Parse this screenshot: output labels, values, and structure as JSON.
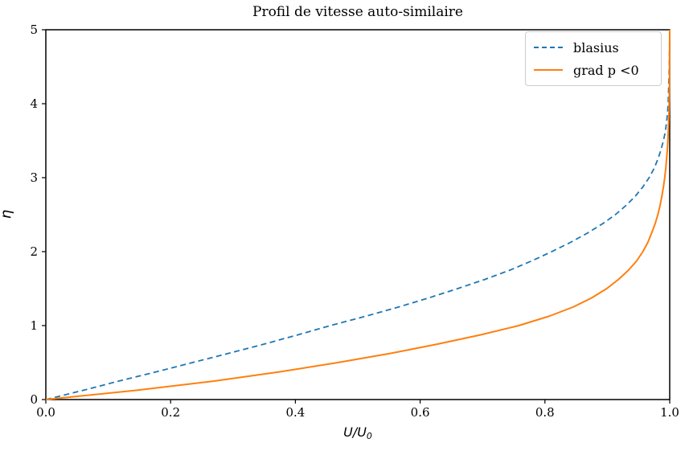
{
  "figure": {
    "background": "#ffffff",
    "axis_color": "#000000"
  },
  "chart_data": {
    "type": "line",
    "title": "Profil de vitesse auto-similaire",
    "xlabel": "U/U_0",
    "xlabel_display": {
      "main": "U/U",
      "sub": "0"
    },
    "ylabel": "η",
    "xlim": [
      0.0,
      1.0
    ],
    "ylim": [
      0,
      5
    ],
    "xticks": [
      "0.0",
      "0.2",
      "0.4",
      "0.6",
      "0.8",
      "1.0"
    ],
    "xtick_values": [
      0.0,
      0.2,
      0.4,
      0.6,
      0.8,
      1.0
    ],
    "yticks": [
      "0",
      "1",
      "2",
      "3",
      "4",
      "5"
    ],
    "ytick_values": [
      0,
      1,
      2,
      3,
      4,
      5
    ],
    "grid": false,
    "legend": {
      "position": "upper right",
      "entries": [
        {
          "label": "blasius",
          "color": "#1f77b4",
          "style": "dashed"
        },
        {
          "label": "grad p <0",
          "color": "#ff7f0e",
          "style": "solid"
        }
      ]
    },
    "series": [
      {
        "name": "blasius",
        "color": "#1f77b4",
        "line_style": "dashed",
        "line_width": 1.8,
        "points_format": "[U/U0, eta]",
        "points": [
          [
            0.0,
            0.0
          ],
          [
            0.06,
            0.125
          ],
          [
            0.117,
            0.25
          ],
          [
            0.177,
            0.375
          ],
          [
            0.235,
            0.5
          ],
          [
            0.293,
            0.625
          ],
          [
            0.35,
            0.75
          ],
          [
            0.404,
            0.875
          ],
          [
            0.456,
            1.0
          ],
          [
            0.512,
            1.125
          ],
          [
            0.565,
            1.25
          ],
          [
            0.614,
            1.375
          ],
          [
            0.66,
            1.5
          ],
          [
            0.704,
            1.625
          ],
          [
            0.744,
            1.75
          ],
          [
            0.779,
            1.875
          ],
          [
            0.811,
            2.0
          ],
          [
            0.841,
            2.125
          ],
          [
            0.868,
            2.25
          ],
          [
            0.892,
            2.375
          ],
          [
            0.913,
            2.5
          ],
          [
            0.93,
            2.625
          ],
          [
            0.945,
            2.75
          ],
          [
            0.957,
            2.875
          ],
          [
            0.967,
            3.0
          ],
          [
            0.975,
            3.125
          ],
          [
            0.981,
            3.25
          ],
          [
            0.986,
            3.375
          ],
          [
            0.99,
            3.5
          ],
          [
            0.993,
            3.625
          ],
          [
            0.995,
            3.75
          ],
          [
            0.9965,
            3.875
          ],
          [
            0.9975,
            4.0
          ],
          [
            0.9985,
            4.25
          ],
          [
            0.9993,
            4.5
          ],
          [
            0.9997,
            4.75
          ],
          [
            1.0,
            5.0
          ]
        ]
      },
      {
        "name": "grad p <0",
        "color": "#ff7f0e",
        "line_style": "solid",
        "line_width": 2.0,
        "points_format": "[U/U0, eta]",
        "points": [
          [
            0.0,
            0.0
          ],
          [
            0.145,
            0.125
          ],
          [
            0.27,
            0.25
          ],
          [
            0.375,
            0.375
          ],
          [
            0.468,
            0.5
          ],
          [
            0.553,
            0.625
          ],
          [
            0.628,
            0.75
          ],
          [
            0.697,
            0.875
          ],
          [
            0.758,
            1.0
          ],
          [
            0.806,
            1.125
          ],
          [
            0.845,
            1.25
          ],
          [
            0.875,
            1.375
          ],
          [
            0.899,
            1.5
          ],
          [
            0.918,
            1.625
          ],
          [
            0.934,
            1.75
          ],
          [
            0.947,
            1.875
          ],
          [
            0.957,
            2.0
          ],
          [
            0.965,
            2.125
          ],
          [
            0.971,
            2.25
          ],
          [
            0.9765,
            2.375
          ],
          [
            0.981,
            2.5
          ],
          [
            0.9845,
            2.625
          ],
          [
            0.9875,
            2.75
          ],
          [
            0.99,
            2.875
          ],
          [
            0.992,
            3.0
          ],
          [
            0.9937,
            3.125
          ],
          [
            0.995,
            3.25
          ],
          [
            0.9961,
            3.375
          ],
          [
            0.997,
            3.5
          ],
          [
            0.9977,
            3.625
          ],
          [
            0.9983,
            3.75
          ],
          [
            0.9988,
            3.875
          ],
          [
            0.9991,
            4.0
          ],
          [
            0.9996,
            4.25
          ],
          [
            0.9998,
            4.5
          ],
          [
            0.9999,
            4.75
          ],
          [
            1.0,
            5.0
          ]
        ]
      }
    ]
  }
}
